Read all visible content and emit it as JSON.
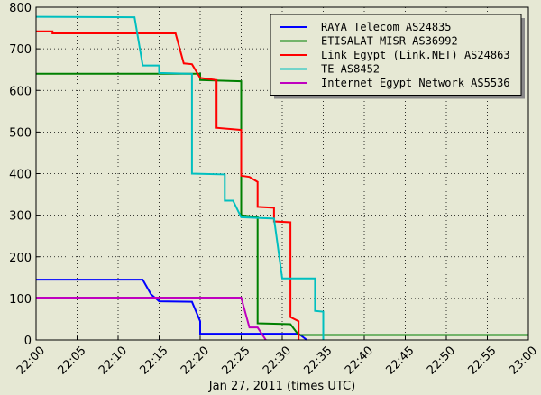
{
  "chart_data": {
    "type": "line",
    "x_label": "Jan 27, 2011 (times UTC)",
    "xlim": [
      "22:00",
      "23:00"
    ],
    "xticks": [
      "22:00",
      "22:05",
      "22:10",
      "22:15",
      "22:20",
      "22:25",
      "22:30",
      "22:35",
      "22:40",
      "22:45",
      "22:50",
      "22:55",
      "23:00"
    ],
    "ylim": [
      0,
      800
    ],
    "yticks": [
      0,
      100,
      200,
      300,
      400,
      500,
      600,
      700,
      800
    ],
    "grid": true,
    "legend": "upper right",
    "series": [
      {
        "name": "RAYA Telecom AS24835",
        "color": "#0000ff",
        "x": [
          "22:00",
          "22:13",
          "22:14",
          "22:15",
          "22:19",
          "22:20",
          "22:20",
          "22:32",
          "22:33"
        ],
        "values": [
          145,
          145,
          110,
          93,
          92,
          45,
          15,
          15,
          0
        ]
      },
      {
        "name": "ETISALAT MISR AS36992",
        "color": "#008000",
        "x": [
          "22:00",
          "22:20",
          "22:20",
          "22:25",
          "22:25",
          "22:27",
          "22:27",
          "22:31",
          "22:32",
          "23:00"
        ],
        "values": [
          640,
          640,
          625,
          622,
          300,
          295,
          40,
          38,
          12,
          12
        ]
      },
      {
        "name": "Link Egypt (Link.NET) AS24863",
        "color": "#ff0000",
        "x": [
          "22:00",
          "22:02",
          "22:02",
          "22:17",
          "22:18",
          "22:19",
          "22:20",
          "22:22",
          "22:22",
          "22:25",
          "22:25",
          "22:26",
          "22:27",
          "22:27",
          "22:29",
          "22:29",
          "22:31",
          "22:31",
          "22:32",
          "22:32"
        ],
        "values": [
          742,
          742,
          737,
          737,
          665,
          663,
          630,
          625,
          510,
          505,
          395,
          392,
          380,
          320,
          318,
          285,
          283,
          55,
          45,
          0
        ]
      },
      {
        "name": "TE AS8452",
        "color": "#00bfbf",
        "x": [
          "22:00",
          "22:12",
          "22:13",
          "22:15",
          "22:15",
          "22:19",
          "22:19",
          "22:23",
          "22:23",
          "22:24",
          "22:25",
          "22:29",
          "22:30",
          "22:34",
          "22:34",
          "22:35",
          "22:35"
        ],
        "values": [
          777,
          776,
          660,
          660,
          642,
          640,
          400,
          398,
          335,
          335,
          295,
          292,
          148,
          148,
          70,
          68,
          0
        ]
      },
      {
        "name": "Internet Egypt Network AS5536",
        "color": "#bf00bf",
        "x": [
          "22:00",
          "22:25",
          "22:26",
          "22:27",
          "22:28"
        ],
        "values": [
          102,
          102,
          30,
          30,
          0
        ]
      }
    ]
  }
}
